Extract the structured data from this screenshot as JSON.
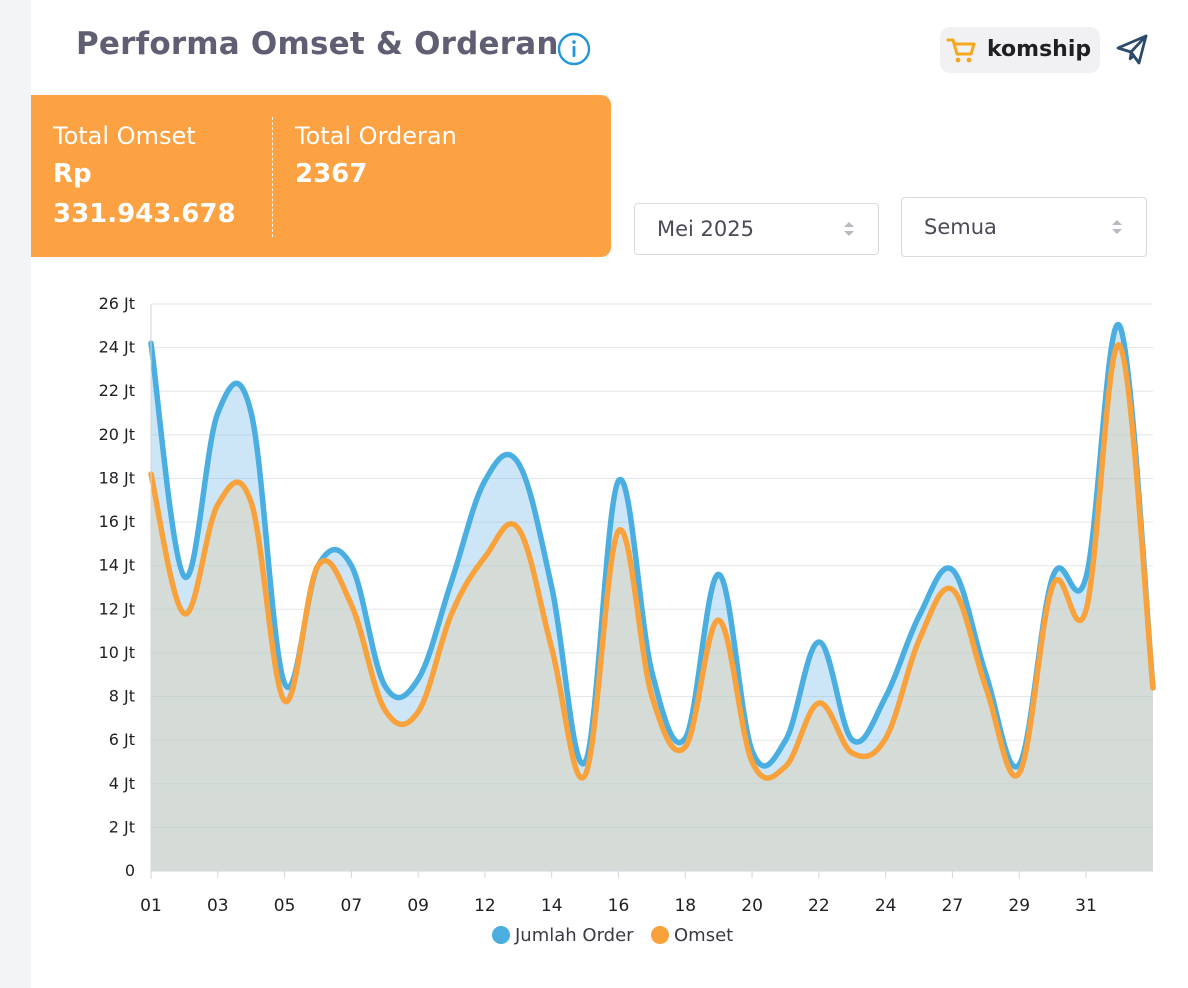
{
  "header": {
    "title": "Performa Omset & Orderan",
    "brand_label": "komship",
    "icons": [
      "info-icon",
      "cart-icon",
      "send-icon"
    ]
  },
  "stats": {
    "omset_label": "Total Omset",
    "omset_currency": "Rp",
    "omset_value": "331.943.678",
    "order_label": "Total Orderan",
    "order_value": "2367"
  },
  "filters": {
    "month_value": "Mei 2025",
    "type_value": "Semua"
  },
  "colors": {
    "accent_orange": "#fda243",
    "series_order": "#4aaee0",
    "series_omset": "#f9a23b",
    "title": "#5f5e72"
  },
  "chart_data": {
    "type": "area",
    "y_unit_label": "Jt",
    "ylim": [
      0,
      26
    ],
    "y_ticks": [
      "0",
      "2 Jt",
      "4 Jt",
      "6 Jt",
      "8 Jt",
      "10 Jt",
      "12 Jt",
      "14 Jt",
      "16 Jt",
      "18 Jt",
      "20 Jt",
      "22 Jt",
      "24 Jt",
      "26 Jt"
    ],
    "x_tick_labels": [
      "01",
      "03",
      "05",
      "07",
      "09",
      "12",
      "14",
      "16",
      "18",
      "20",
      "22",
      "24",
      "27",
      "29",
      "31"
    ],
    "grid": true,
    "legend": "bottom",
    "series": [
      {
        "name": "Jumlah Order",
        "values": [
          24.2,
          13.5,
          21.0,
          21.0,
          8.6,
          14.0,
          14.0,
          8.5,
          8.8,
          13.3,
          17.9,
          18.7,
          13.0,
          5.0,
          17.9,
          9.1,
          6.1,
          13.6,
          5.5,
          6.0,
          10.5,
          6.0,
          8.0,
          11.7,
          13.8,
          9.0,
          4.9,
          13.5,
          13.5,
          25.0,
          8.4
        ],
        "x": [
          1.0,
          2.0,
          3.0,
          4.0,
          5.0,
          6.0,
          7.0,
          8.0,
          9.0,
          10.0,
          11.0,
          12.0,
          13.0,
          14.0,
          15.0,
          16.0,
          17.0,
          18.0,
          19.0,
          20.0,
          21.0,
          22.0,
          23.0,
          24.0,
          25.0,
          26.0,
          27.0,
          28.0,
          29.0,
          30.0,
          31.0
        ]
      },
      {
        "name": "Omset",
        "values": [
          18.2,
          11.8,
          16.8,
          16.9,
          7.8,
          14.0,
          12.2,
          7.4,
          7.3,
          11.8,
          14.4,
          15.7,
          10.2,
          4.4,
          15.6,
          8.0,
          5.7,
          11.5,
          5.0,
          4.8,
          7.7,
          5.4,
          6.1,
          10.6,
          12.9,
          8.4,
          4.5,
          13.1,
          12.0,
          24.1,
          8.4
        ],
        "x": [
          1.0,
          2.0,
          3.0,
          4.0,
          5.0,
          6.0,
          7.0,
          8.0,
          9.0,
          10.0,
          11.0,
          12.0,
          13.0,
          14.0,
          15.0,
          16.0,
          17.0,
          18.0,
          19.0,
          20.0,
          21.0,
          22.0,
          23.0,
          24.0,
          25.0,
          26.0,
          27.0,
          28.0,
          29.0,
          30.0,
          31.0
        ]
      }
    ]
  }
}
